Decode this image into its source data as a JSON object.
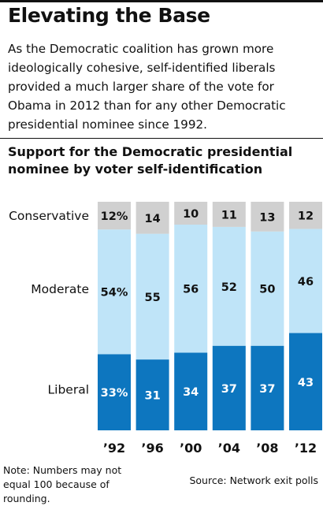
{
  "title": "Elevating the Base",
  "intro": "As the Democratic coalition has grown more ideologically cohesive, self-identified liberals provided a much larger share of the vote for Obama in 2012 than for any other Democratic presidential nominee since 1992.",
  "note": "Note: Numbers may not equal 100 because of rounding.",
  "source": "Source: Network exit polls",
  "colors": {
    "conservative": "#d0d0d0",
    "moderate": "#bfe4f8",
    "liberal": "#0d76bf"
  },
  "chart_data": {
    "type": "bar",
    "stacked": true,
    "normalized": true,
    "title": "Support for the Democratic presidential nominee by voter self-identification",
    "categories": [
      "’92",
      "’96",
      "’00",
      "’04",
      "’08",
      "’12"
    ],
    "series": [
      {
        "name": "Liberal",
        "values": [
          33,
          31,
          34,
          37,
          37,
          43
        ],
        "value_labels": [
          "33%",
          "31",
          "34",
          "37",
          "37",
          "43"
        ]
      },
      {
        "name": "Moderate",
        "values": [
          54,
          55,
          56,
          52,
          50,
          46
        ],
        "value_labels": [
          "54%",
          "55",
          "56",
          "52",
          "50",
          "46"
        ]
      },
      {
        "name": "Conservative",
        "values": [
          12,
          14,
          10,
          11,
          13,
          12
        ],
        "value_labels": [
          "12%",
          "14",
          "10",
          "11",
          "13",
          "12"
        ]
      }
    ],
    "legend": "row labels at left",
    "grid": false
  }
}
